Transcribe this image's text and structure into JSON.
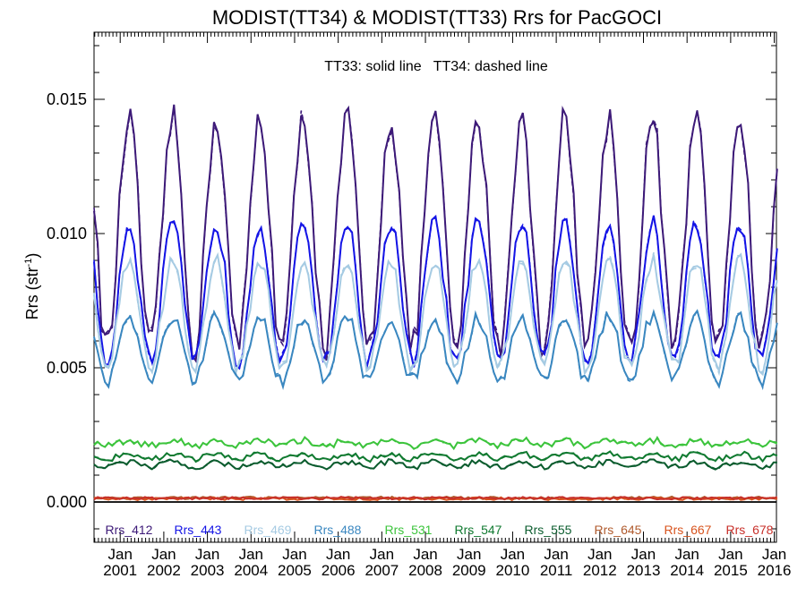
{
  "chart_data": {
    "type": "line",
    "title": "MODIST(TT34) & MODIST(TT33)  Rrs for PacGOCI",
    "annotation": "TT33: solid line   TT34: dashed line",
    "ylabel": "Rrs (str",
    "ylabel_sup": "-1",
    "ylabel_close": ")",
    "ylim": [
      -0.0015,
      0.0175
    ],
    "yticks": [
      0.0,
      0.005,
      0.01,
      0.015
    ],
    "ytick_labels": [
      "0.000",
      "0.005",
      "0.010",
      "0.015"
    ],
    "xlim": [
      2000.4,
      2016.05
    ],
    "xticks": [
      2001,
      2002,
      2003,
      2004,
      2005,
      2006,
      2007,
      2008,
      2009,
      2010,
      2011,
      2012,
      2013,
      2014,
      2015,
      2016
    ],
    "xtick_month": "Jan",
    "xtick_years": [
      "2001",
      "2002",
      "2003",
      "2004",
      "2005",
      "2006",
      "2007",
      "2008",
      "2009",
      "2010",
      "2011",
      "2012",
      "2013",
      "2014",
      "2015",
      "2016"
    ],
    "zero_line": true,
    "grid": false,
    "legend_position": "bottom-inside",
    "series": [
      {
        "name": "Rrs_412",
        "color": "#3d1a78",
        "mean": 0.01,
        "amp": 0.0043,
        "noise": 0.0006
      },
      {
        "name": "Rrs_443",
        "color": "#1414e6",
        "mean": 0.0078,
        "amp": 0.0026,
        "noise": 0.00035
      },
      {
        "name": "Rrs_469",
        "color": "#a6cbe3",
        "mean": 0.007,
        "amp": 0.002,
        "noise": 0.0003
      },
      {
        "name": "Rrs_488",
        "color": "#3a87c0",
        "mean": 0.0057,
        "amp": 0.0012,
        "noise": 0.00025
      },
      {
        "name": "Rrs_531",
        "color": "#3cc43c",
        "mean": 0.0022,
        "amp": 0.0001,
        "noise": 0.00012
      },
      {
        "name": "Rrs_547",
        "color": "#107a30",
        "mean": 0.0017,
        "amp": 0.0001,
        "noise": 0.0001
      },
      {
        "name": "Rrs_555",
        "color": "#0b5c2e",
        "mean": 0.0014,
        "amp": 0.0001,
        "noise": 0.0001
      },
      {
        "name": "Rrs_645",
        "color": "#b05b2e",
        "mean": 0.00015,
        "amp": 0.0,
        "noise": 5e-05
      },
      {
        "name": "Rrs_667",
        "color": "#d8541e",
        "mean": 0.00012,
        "amp": 0.0,
        "noise": 5e-05
      },
      {
        "name": "Rrs_678",
        "color": "#c8302a",
        "mean": 0.00014,
        "amp": 0.0,
        "noise": 5e-05
      }
    ]
  }
}
